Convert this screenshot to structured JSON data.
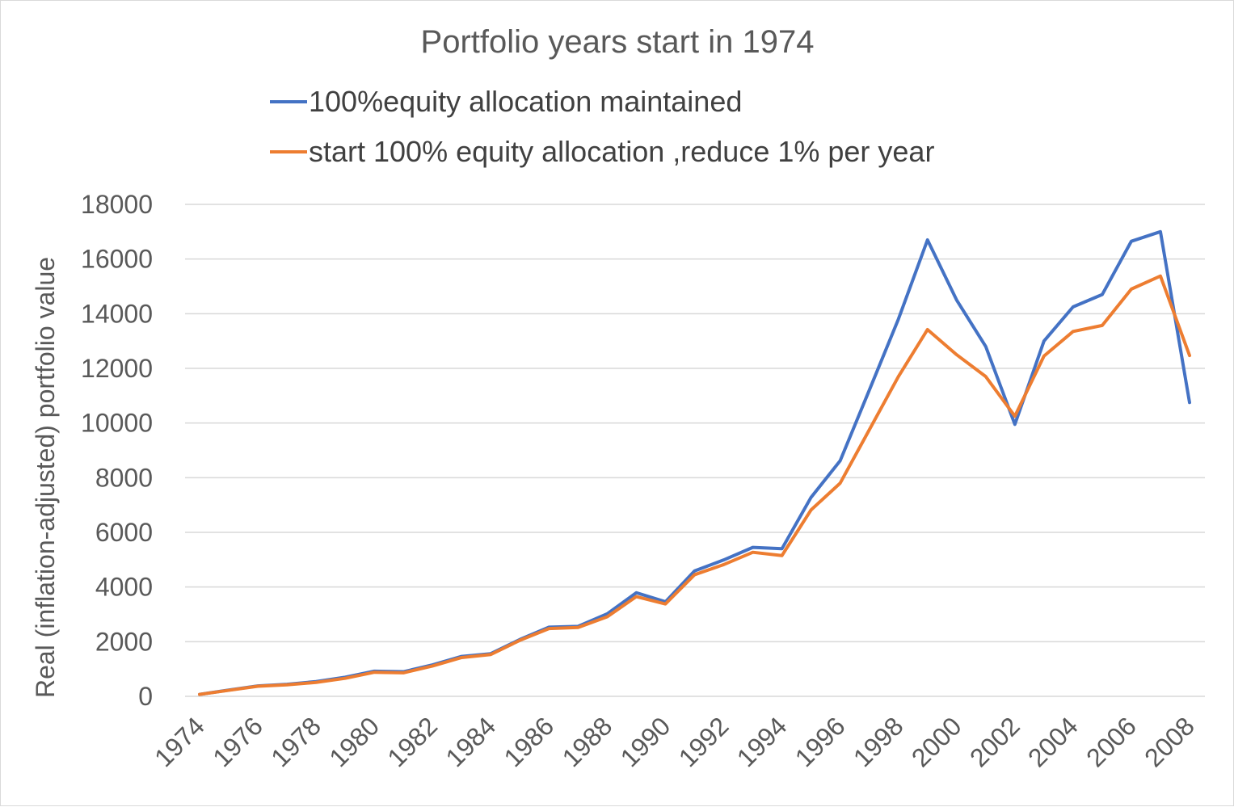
{
  "chart_data": {
    "type": "line",
    "title": "Portfolio years start in 1974",
    "xlabel": "",
    "ylabel": "Real (inflation-adjusted) portfolio value",
    "ylim": [
      0,
      18000
    ],
    "yticks": [
      0,
      2000,
      4000,
      6000,
      8000,
      10000,
      12000,
      14000,
      16000,
      18000
    ],
    "x_tick_labels": [
      "1974",
      "1976",
      "1978",
      "1980",
      "1982",
      "1984",
      "1986",
      "1988",
      "1990",
      "1992",
      "1994",
      "1996",
      "1998",
      "2000",
      "2002",
      "2004",
      "2006",
      "2008"
    ],
    "x": [
      1974,
      1975,
      1976,
      1977,
      1978,
      1979,
      1980,
      1981,
      1982,
      1983,
      1984,
      1985,
      1986,
      1987,
      1988,
      1989,
      1990,
      1991,
      1992,
      1993,
      1994,
      1995,
      1996,
      1997,
      1998,
      1999,
      2000,
      2001,
      2002,
      2003,
      2004,
      2005,
      2006,
      2007,
      2008
    ],
    "grid": true,
    "legend_position": "top",
    "series": [
      {
        "name": "100%equity allocation maintained",
        "color": "#4472c4",
        "values": [
          70,
          230,
          380,
          440,
          540,
          700,
          920,
          900,
          1150,
          1460,
          1560,
          2080,
          2530,
          2560,
          3020,
          3790,
          3460,
          4590,
          4990,
          5450,
          5400,
          7280,
          8620,
          11200,
          13800,
          16700,
          14500,
          12800,
          9950,
          13000,
          14250,
          14700,
          16650,
          17000,
          10750
        ]
      },
      {
        "name": "start 100% equity allocation ,reduce 1% per year",
        "color": "#ed7d31",
        "values": [
          70,
          220,
          370,
          420,
          510,
          660,
          880,
          860,
          1110,
          1420,
          1530,
          2050,
          2480,
          2520,
          2910,
          3650,
          3380,
          4450,
          4820,
          5270,
          5150,
          6820,
          7800,
          9750,
          11700,
          13420,
          12500,
          11700,
          10250,
          12450,
          13350,
          13570,
          14900,
          15380,
          12470
        ]
      }
    ]
  }
}
